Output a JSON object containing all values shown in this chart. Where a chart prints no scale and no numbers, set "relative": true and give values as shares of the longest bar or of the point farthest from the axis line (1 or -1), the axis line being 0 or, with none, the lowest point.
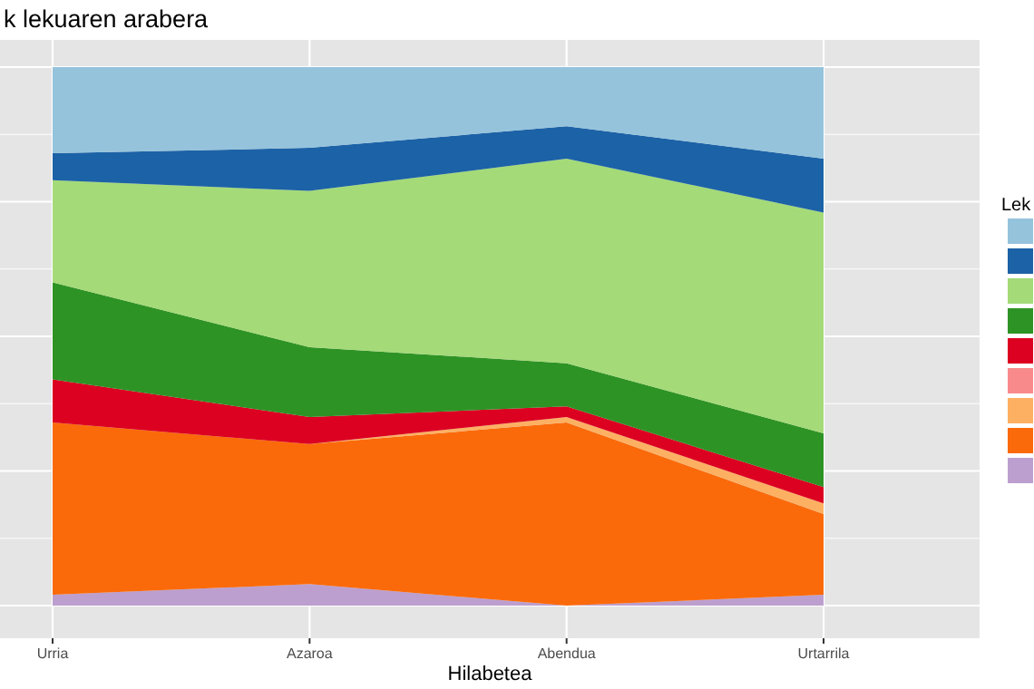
{
  "chart_data": {
    "type": "area",
    "stacked": true,
    "relative": true,
    "title": "k lekuaren arabera",
    "xlabel": "Hilabetea",
    "legend_title": "Lek",
    "grid": true,
    "categories": [
      "Urria",
      "Azaroa",
      "Abendua",
      "Urtarrila"
    ],
    "series": [
      {
        "color": "#bc9fcf",
        "values": [
          0.02,
          0.04,
          0,
          0.02
        ]
      },
      {
        "color": "#fb6a0a",
        "values": [
          0.32,
          0.26,
          0.34,
          0.15
        ]
      },
      {
        "color": "#fdb062",
        "values": [
          0,
          0,
          0.01,
          0.02
        ]
      },
      {
        "color": "#f98a8c",
        "values": [
          null,
          null,
          null,
          null
        ]
      },
      {
        "color": "#dc0021",
        "values": [
          0.08,
          0.05,
          0.02,
          0.03
        ]
      },
      {
        "color": "#2e9325",
        "values": [
          0.18,
          0.13,
          0.08,
          0.1
        ]
      },
      {
        "color": "#a4da78",
        "values": [
          0.19,
          0.29,
          0.38,
          0.41
        ]
      },
      {
        "color": "#1c62a7",
        "values": [
          0.05,
          0.08,
          0.06,
          0.1
        ]
      },
      {
        "color": "#95c3dc",
        "values": [
          0.16,
          0.15,
          0.11,
          0.17
        ]
      }
    ]
  }
}
